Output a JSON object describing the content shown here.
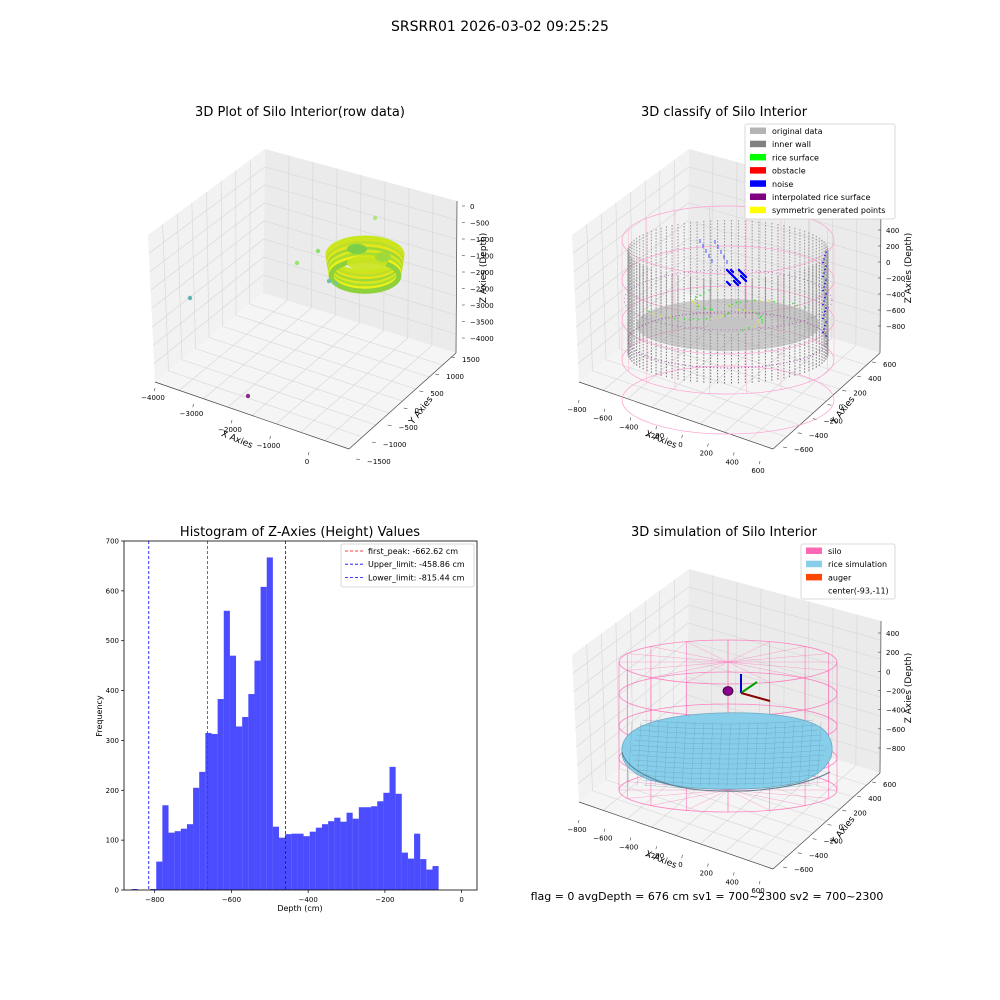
{
  "figure": {
    "suptitle": "SRSRR01 2026-03-02 09:25:25",
    "footer": "flag = 0     avgDepth = 676 cm  sv1 = 700~2300  sv2 = 700~2300"
  },
  "panels": {
    "raw": {
      "title": "3D Plot of Silo Interior(row data)",
      "xlabel": "X Axies",
      "ylabel": "Y Axies",
      "zlabel": "Z Axies (Depth)",
      "xticks": [
        "−4000",
        "−3000",
        "−2000",
        "−1000",
        "0"
      ],
      "yticks": [
        "−1500",
        "−1000",
        "−500",
        "0",
        "500",
        "1000",
        "1500"
      ],
      "zticks": [
        "0",
        "−500",
        "−1000",
        "−1500",
        "−2000",
        "−2500",
        "−3000",
        "−3500",
        "−4000"
      ]
    },
    "classify": {
      "title": "3D classify of Silo Interior",
      "xlabel": "X Axies",
      "ylabel": "Y Axies",
      "zlabel": "Z Axies (Depth)",
      "xticks": [
        "−800",
        "−600",
        "−400",
        "−200",
        "0",
        "200",
        "400",
        "600"
      ],
      "yticks": [
        "−600",
        "−400",
        "−200",
        "0",
        "200",
        "400",
        "600"
      ],
      "zticks": [
        "400",
        "200",
        "0",
        "−200",
        "−400",
        "−600",
        "−800"
      ],
      "legend": [
        {
          "label": "original data",
          "color": "#b4b4b4"
        },
        {
          "label": "inner wall",
          "color": "#808080"
        },
        {
          "label": "rice surface",
          "color": "#00ff00"
        },
        {
          "label": "obstacle",
          "color": "#ff0000"
        },
        {
          "label": "noise",
          "color": "#0000ff"
        },
        {
          "label": "interpolated rice surface",
          "color": "#800080"
        },
        {
          "label": "symmetric generated points",
          "color": "#ffff00"
        }
      ]
    },
    "simulation": {
      "title": "3D simulation of Silo Interior",
      "xlabel": "X Axies",
      "ylabel": "Y Axies",
      "zlabel": "Z Axies (Depth)",
      "xticks": [
        "−800",
        "−600",
        "−400",
        "−200",
        "0",
        "200",
        "400",
        "600"
      ],
      "yticks": [
        "−600",
        "−400",
        "−200",
        "0",
        "200",
        "400",
        "600"
      ],
      "zticks": [
        "400",
        "200",
        "0",
        "−200",
        "−400",
        "−600",
        "−800"
      ],
      "legend": [
        {
          "label": "silo",
          "color": "#ff69b4"
        },
        {
          "label": "rice simulation",
          "color": "#87ceeb"
        },
        {
          "label": "auger",
          "color": "#ff4500"
        },
        {
          "label": "center(-93,-11)",
          "color": ""
        }
      ]
    }
  },
  "chart_data": {
    "type": "bar",
    "title": "Histogram of Z-Axies (Height) Values",
    "xlabel": "Depth (cm)",
    "ylabel": "Frequency",
    "xlim": [
      -880,
      40
    ],
    "ylim": [
      0,
      700
    ],
    "xticks": [
      -800,
      -600,
      -400,
      -200,
      0
    ],
    "xtick_labels": [
      "−800",
      "−600",
      "−400",
      "−200",
      "0"
    ],
    "yticks": [
      0,
      100,
      200,
      300,
      400,
      500,
      600,
      700
    ],
    "bar_color": "#0000ff",
    "bin_start": -860,
    "bin_width": 16,
    "counts": [
      2,
      0,
      0,
      2,
      57,
      170,
      115,
      118,
      123,
      132,
      205,
      237,
      315,
      313,
      383,
      560,
      470,
      328,
      347,
      393,
      460,
      608,
      667,
      127,
      105,
      112,
      113,
      113,
      108,
      117,
      125,
      132,
      138,
      145,
      137,
      155,
      143,
      166,
      166,
      168,
      178,
      195,
      247,
      193,
      75,
      63,
      113,
      62,
      41,
      48
    ],
    "lines": [
      {
        "label": "first_peak: -662.62 cm",
        "value": -662.62,
        "color": "#ff0000"
      },
      {
        "label": "Upper_limit: -458.86 cm",
        "value": -458.86,
        "color": "#0000ff"
      },
      {
        "label": "Lower_limit: -815.44 cm",
        "value": -815.44,
        "color": "#0000ff"
      }
    ],
    "legend_position": "upper right"
  }
}
